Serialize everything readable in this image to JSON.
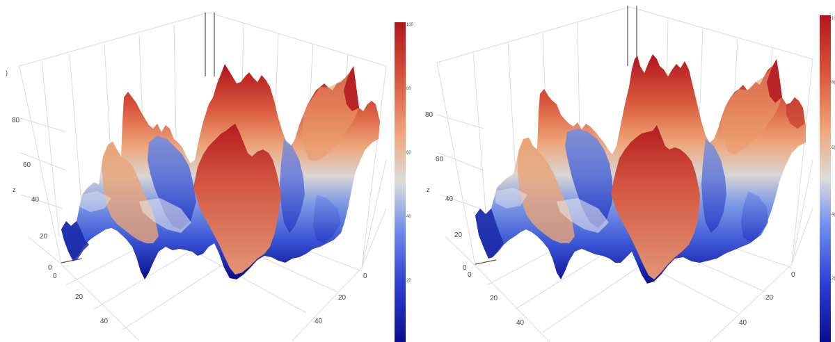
{
  "chart_data": [
    {
      "type": "surface3d",
      "panel": "left",
      "title": "",
      "axis_title_z": "z",
      "x_ticks": [
        "0",
        "20",
        "40"
      ],
      "y_ticks": [
        "0",
        "20"
      ],
      "z_ticks": [
        "0",
        "20",
        "40",
        "60",
        "80",
        ")"
      ],
      "zlim": [
        0,
        100
      ],
      "colorbar": {
        "colorscale": "blue-white-red (coolwarm)",
        "range": [
          0,
          100
        ],
        "tick_labels": [
          "20",
          "40",
          "60",
          "80",
          "100"
        ]
      },
      "surface_peaks_z": [
        98,
        93,
        92,
        84,
        75,
        62,
        62,
        58,
        42,
        40,
        22,
        12
      ],
      "surface_valleys_z": [
        4,
        8,
        10,
        12,
        14,
        15
      ]
    },
    {
      "type": "surface3d",
      "panel": "right",
      "title": "",
      "axis_title_z": "z",
      "x_ticks": [
        "0",
        "20",
        "40"
      ],
      "y_ticks": [
        "0",
        "20",
        "40"
      ],
      "z_ticks": [
        "0",
        "20",
        "40",
        "60",
        "80"
      ],
      "zlim": [
        0,
        100
      ],
      "colorbar": {
        "colorscale": "blue-white-red (coolwarm)",
        "range": [
          0,
          100
        ],
        "tick_labels": [
          "2(",
          "4(",
          "6(",
          "8(",
          "10"
        ]
      },
      "surface_peaks_z": [
        100,
        98,
        96,
        92,
        84,
        72,
        66,
        62,
        45,
        38,
        20,
        12
      ],
      "surface_valleys_z": [
        4,
        6,
        10,
        12,
        14,
        15
      ]
    }
  ],
  "colors": {
    "low": "#0a0e8f",
    "mid": "#dcdcdc",
    "high": "#b1161d"
  }
}
